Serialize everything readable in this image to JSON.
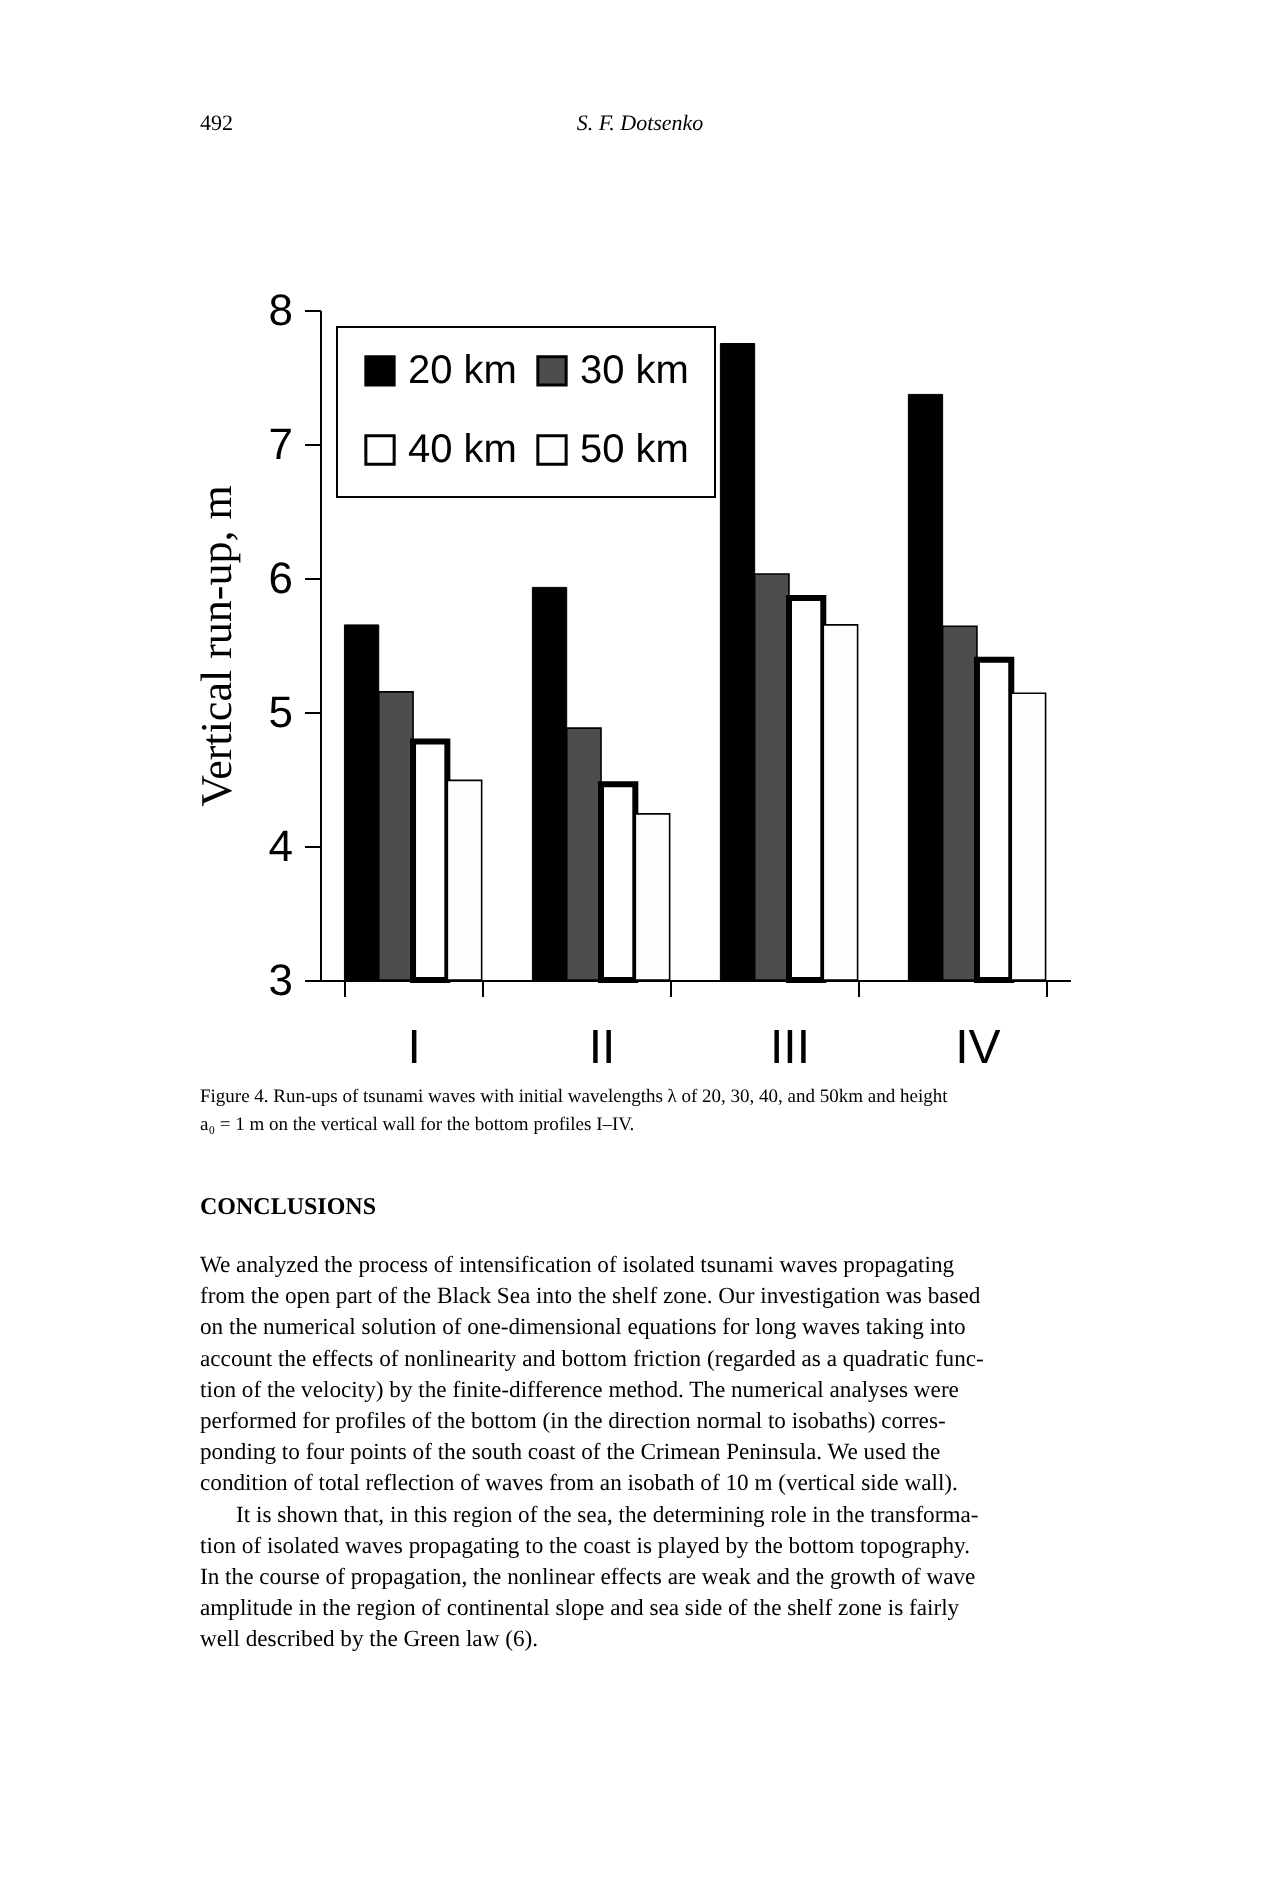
{
  "chart_data": {
    "type": "bar",
    "categories": [
      "I",
      "II",
      "III",
      "IV"
    ],
    "ylabel": "Vertical run-up, m",
    "ylim": [
      3,
      8
    ],
    "yticks": [
      3,
      4,
      5,
      6,
      7,
      8
    ],
    "grid": false,
    "legend": "top left",
    "series": [
      {
        "name": "20 km",
        "color": "#000000",
        "values": [
          5.65,
          5.93,
          7.75,
          7.37
        ]
      },
      {
        "name": "30 km",
        "color": "#4d4d4d",
        "values": [
          5.15,
          4.88,
          6.03,
          5.64
        ]
      },
      {
        "name": "40 km",
        "color": "#ffffff",
        "values": [
          4.78,
          4.46,
          5.85,
          5.39
        ]
      },
      {
        "name": "50 km",
        "color": "#fefefe",
        "values": [
          4.49,
          4.24,
          5.65,
          5.14
        ]
      }
    ],
    "annotations": [
      "492",
      "S. F. Dotsenko",
      "Figure 4. Run-ups of tsunami waves with initial wavelengths λ of 20, 30, 40, and 50km and height",
      "a₀ = 1 m on the vertical wall for the bottom profiles I–IV.",
      "CONCLUSIONS",
      "We analyzed the process of intensification of isolated tsunami waves propagating",
      "from the open part of the Black Sea into the shelf zone.  Our investigation was based",
      "on the numerical solution of one-dimensional equations for long waves taking into",
      "account the effects of nonlinearity and bottom friction (regarded as a quadratic func-",
      "tion of the velocity) by the finite-difference method.  The numerical analyses were",
      "performed for profiles of the bottom (in the direction normal to isobaths) corres-",
      "ponding to four points of the south coast of the Crimean Peninsula.  We used the",
      "condition of total reflection of waves from an isobath of  10 m  (vertical side wall).",
      "It is shown that, in this region of the sea, the determining role in the transforma-",
      "tion of isolated waves propagating to the coast is played by the bottom topography.",
      "In the course of propagation, the nonlinear effects are weak and the growth of wave",
      "amplitude in the region of continental slope and sea side of the shelf zone is fairly",
      "well described by the Green law (6)."
    ]
  }
}
